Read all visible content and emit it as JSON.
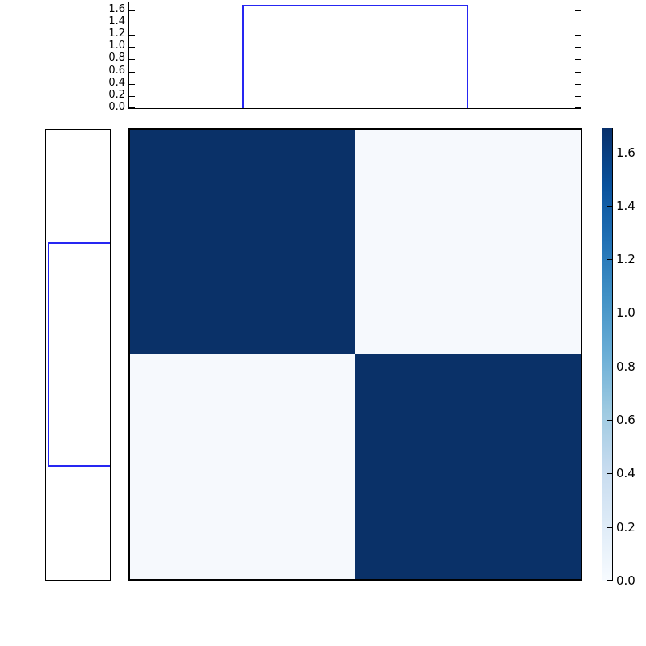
{
  "figure": {
    "background": "#ffffff",
    "frame_color": "#000000",
    "line_color": "#2626f2"
  },
  "chart_data": {
    "type": "heatmap",
    "title": "",
    "layout": "central 2x2 checkerboard heatmap, top and left marginal step plots, vertical colorbar at right",
    "grid": false,
    "heatmap": {
      "matrix": [
        [
          1.69,
          0.03
        ],
        [
          0.03,
          1.69
        ]
      ],
      "high_color": "#0a3168",
      "low_color": "#f6f9fd"
    },
    "top_marginal": {
      "yticks": [
        "0.0",
        "0.2",
        "0.4",
        "0.6",
        "0.8",
        "1.0",
        "1.2",
        "1.4",
        "1.6"
      ],
      "axis_ymin": 0.0,
      "axis_ymax": 1.73,
      "step": {
        "x_start_frac": 0.25,
        "x_end_frac": 0.75,
        "height": 1.69
      }
    },
    "left_marginal": {
      "step": {
        "y_start_frac": 0.249,
        "y_end_frac": 0.748,
        "height_frac": 0.97
      }
    },
    "colorbar": {
      "ticks": [
        "0.0",
        "0.2",
        "0.4",
        "0.6",
        "0.8",
        "1.0",
        "1.2",
        "1.4",
        "1.6"
      ],
      "vmin": 0.0,
      "vmax": 1.689,
      "gradient": [
        "#f7fbff",
        "#deebf7",
        "#c6dbef",
        "#9ecae1",
        "#6baed6",
        "#4292c6",
        "#2171b5",
        "#08519c",
        "#08306b"
      ]
    }
  }
}
